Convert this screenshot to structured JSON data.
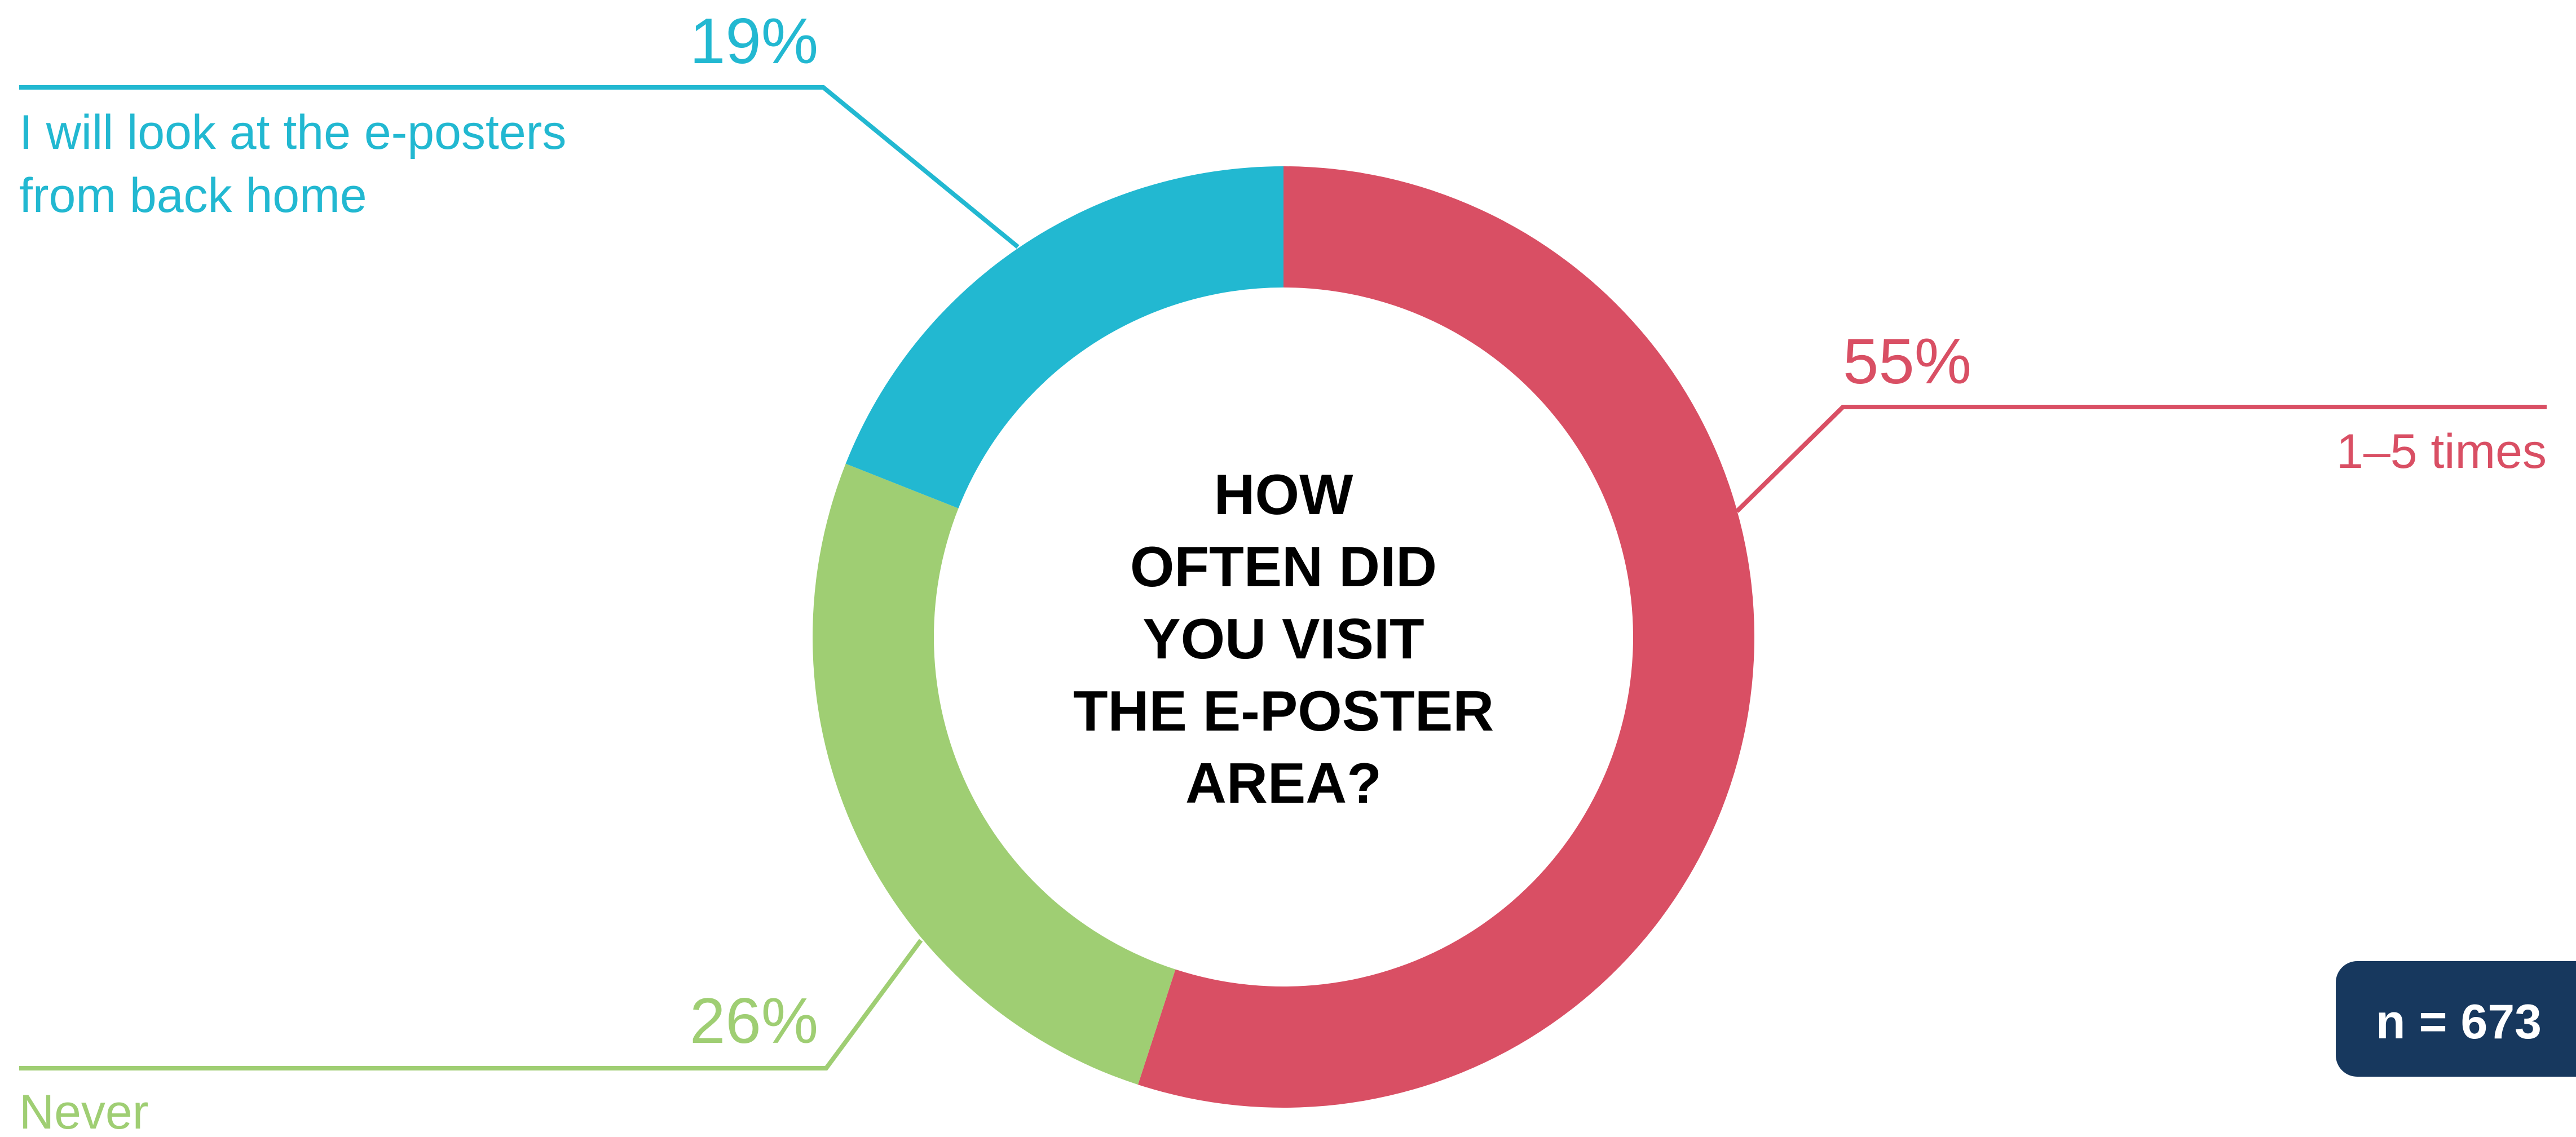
{
  "chart_data": {
    "type": "pie",
    "variant": "donut",
    "title_lines": [
      "HOW",
      "OFTEN DID",
      "YOU VISIT",
      "THE E-POSTER",
      "AREA?"
    ],
    "segments": [
      {
        "category": "1–5 times",
        "category_lines": [
          "1–5 times"
        ],
        "value": 55,
        "value_label": "55%",
        "color": "#D94F64"
      },
      {
        "category": "Never",
        "category_lines": [
          "Never"
        ],
        "value": 26,
        "value_label": "26%",
        "color": "#9FCE73"
      },
      {
        "category": "I will look at the e-posters from back home",
        "category_lines": [
          "I will look at the e-posters",
          "from back home"
        ],
        "value": 19,
        "value_label": "19%",
        "color": "#22B8D1"
      }
    ],
    "sample_size_label": "n = 673",
    "sample_badge_color": "#17385E"
  }
}
